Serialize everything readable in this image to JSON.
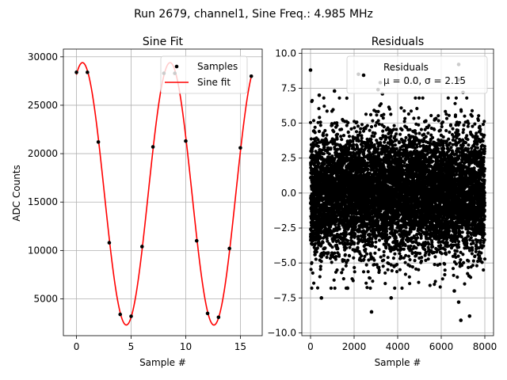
{
  "figure": {
    "suptitle": "Run 2679, channel1, Sine Freq.: 4.985 MHz"
  },
  "chart_data": [
    {
      "type": "scatter+line",
      "title": "Sine Fit",
      "xlabel": "Sample #",
      "ylabel": "ADC Counts",
      "xlim": [
        -1.2,
        17
      ],
      "ylim": [
        1200,
        30800
      ],
      "xticks": [
        0,
        5,
        10,
        15
      ],
      "yticks": [
        5000,
        10000,
        15000,
        20000,
        25000,
        30000
      ],
      "grid": true,
      "legend_position": "upper-right",
      "series": [
        {
          "name": "Samples",
          "kind": "points",
          "color": "#000000",
          "x": [
            0,
            1,
            2,
            3,
            4,
            5,
            6,
            7,
            8,
            9,
            10,
            11,
            12,
            13,
            14,
            15,
            16
          ],
          "y": [
            28400,
            28400,
            21200,
            10800,
            3400,
            3200,
            10400,
            20700,
            28300,
            28300,
            21300,
            11000,
            3500,
            3100,
            10200,
            20600,
            28000
          ]
        },
        {
          "name": "Sine fit",
          "kind": "line",
          "color": "#ff0000",
          "model": {
            "offset": 15850,
            "amplitude": 13550,
            "period": 8.02,
            "peak_x": 0.55
          }
        }
      ]
    },
    {
      "type": "scatter",
      "title": "Residuals",
      "xlabel": "Sample #",
      "ylabel": "",
      "xlim": [
        -400,
        8400
      ],
      "ylim": [
        -10.2,
        10.3
      ],
      "xticks": [
        0,
        2000,
        4000,
        6000,
        8000
      ],
      "yticks": [
        -10.0,
        -7.5,
        -5.0,
        -2.5,
        0.0,
        2.5,
        5.0,
        7.5,
        10.0
      ],
      "ytick_labels": [
        "−10.0",
        "−7.5",
        "−5.0",
        "−2.5",
        "0.0",
        "2.5",
        "5.0",
        "7.5",
        "10.0"
      ],
      "grid": true,
      "legend_position": "upper-right",
      "series": [
        {
          "name": "Residuals",
          "legend_line2": "μ = 0.0, σ = 2.15",
          "color": "#000000",
          "n_points": 8000,
          "mean": 0.0,
          "std": 2.15,
          "outliers": [
            [
              0,
              8.8
            ],
            [
              400,
              7.0
            ],
            [
              1100,
              7.3
            ],
            [
              2200,
              8.5
            ],
            [
              3100,
              7.4
            ],
            [
              3300,
              7.1
            ],
            [
              6800,
              8.1
            ],
            [
              7000,
              7.2
            ],
            [
              6800,
              9.2
            ],
            [
              3200,
              7.9
            ],
            [
              2800,
              -8.5
            ],
            [
              3700,
              -7.5
            ],
            [
              6600,
              -7.0
            ],
            [
              6800,
              -7.8
            ],
            [
              6900,
              -9.1
            ],
            [
              7300,
              -8.8
            ],
            [
              500,
              -7.5
            ],
            [
              1700,
              -6.8
            ]
          ]
        }
      ]
    }
  ]
}
